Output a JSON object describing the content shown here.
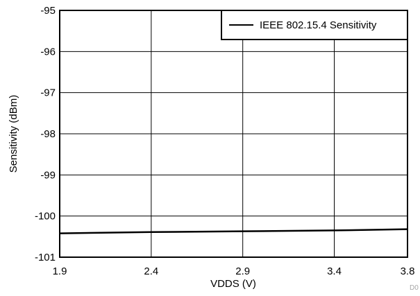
{
  "chart_data": {
    "type": "line",
    "title": "",
    "xlabel": "VDDS (V)",
    "ylabel": "Sensitivity (dBm)",
    "xlim": [
      1.9,
      3.8
    ],
    "ylim": [
      -101,
      -95
    ],
    "x_ticks": [
      1.9,
      2.4,
      2.9,
      3.4,
      3.8
    ],
    "x_tick_labels": [
      "1.9",
      "2.4",
      "2.9",
      "3.4",
      "3.8"
    ],
    "y_ticks": [
      -95,
      -96,
      -97,
      -98,
      -99,
      -100,
      -101
    ],
    "y_tick_labels": [
      "-95",
      "-96",
      "-97",
      "-98",
      "-99",
      "-100",
      "-101"
    ],
    "grid": true,
    "legend_position": "top-right",
    "series": [
      {
        "name": "IEEE 802.15.4 Sensitivity",
        "color": "#000000",
        "x": [
          1.9,
          2.4,
          2.9,
          3.4,
          3.8
        ],
        "y": [
          -100.42,
          -100.39,
          -100.37,
          -100.35,
          -100.32
        ]
      }
    ],
    "footnote": "D0"
  }
}
